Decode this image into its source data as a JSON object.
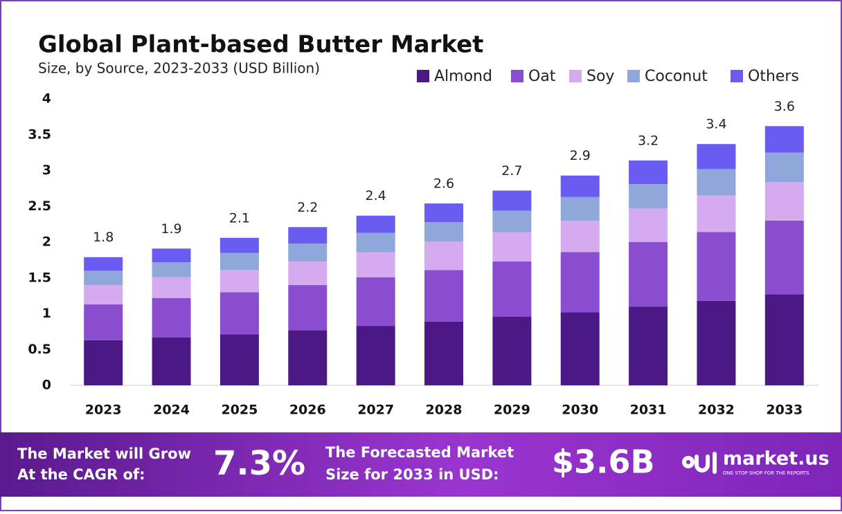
{
  "chart_data": {
    "type": "stacked-bar",
    "title": "Global Plant-based Butter Market",
    "subtitle": "Size, by Source, 2023-2033 (USD Billion)",
    "categories": [
      "2023",
      "2024",
      "2025",
      "2026",
      "2027",
      "2028",
      "2029",
      "2030",
      "2031",
      "2032",
      "2033"
    ],
    "series": [
      {
        "name": "Almond",
        "color": "#4b1885",
        "values": [
          0.63,
          0.67,
          0.71,
          0.77,
          0.83,
          0.89,
          0.96,
          1.02,
          1.1,
          1.18,
          1.27
        ]
      },
      {
        "name": "Oat",
        "color": "#8a4dcf",
        "values": [
          0.5,
          0.55,
          0.59,
          0.63,
          0.68,
          0.72,
          0.77,
          0.84,
          0.9,
          0.96,
          1.03
        ]
      },
      {
        "name": "Soy",
        "color": "#d5aaee",
        "values": [
          0.27,
          0.29,
          0.31,
          0.33,
          0.35,
          0.4,
          0.41,
          0.44,
          0.47,
          0.51,
          0.54
        ]
      },
      {
        "name": "Coconut",
        "color": "#8fa7db",
        "values": [
          0.2,
          0.21,
          0.24,
          0.25,
          0.27,
          0.27,
          0.3,
          0.33,
          0.34,
          0.37,
          0.41
        ]
      },
      {
        "name": "Others",
        "color": "#6b5cf1",
        "values": [
          0.19,
          0.19,
          0.21,
          0.23,
          0.24,
          0.26,
          0.28,
          0.3,
          0.33,
          0.35,
          0.37
        ]
      }
    ],
    "totals": [
      1.8,
      1.9,
      2.1,
      2.2,
      2.4,
      2.6,
      2.7,
      2.9,
      3.2,
      3.4,
      3.6
    ],
    "ylim": [
      0,
      4
    ],
    "yticks": [
      0,
      0.5,
      1,
      1.5,
      2,
      2.5,
      3,
      3.5,
      4
    ],
    "grid": false,
    "legend": "top-right"
  },
  "footer": {
    "cagr_text_1": "The Market will Grow",
    "cagr_text_2": "At the CAGR of:",
    "cagr": "7.3%",
    "size_text_1": "The Forecasted Market",
    "size_text_2": "Size for 2033 in USD:",
    "size": "$3.6B",
    "brand": "market.us",
    "tagline": "ONE STOP SHOP FOR THE REPORTS"
  }
}
